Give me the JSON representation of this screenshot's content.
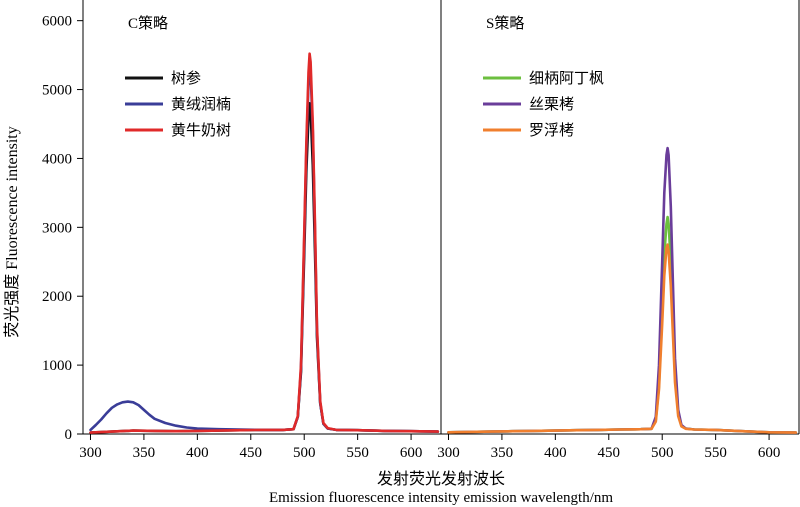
{
  "chart_data": {
    "type": "line",
    "xlabel_cn": "发射荧光发射波长",
    "xlabel_en": "Emission fluorescence intensity emission wavelength/nm",
    "ylabel": "荧光强度 Fluorescence intensity",
    "ylim": [
      0,
      6300
    ],
    "yticks": [
      0,
      1000,
      2000,
      3000,
      4000,
      5000,
      6000
    ],
    "grid": false,
    "panels": [
      {
        "title": "C策略",
        "xlim": [
          293,
          628
        ],
        "xticks": [
          300,
          350,
          400,
          450,
          500,
          550,
          600
        ],
        "legend_position": "top-left",
        "series": [
          {
            "name": "树参",
            "color": "#111111",
            "points": [
              [
                300,
                20
              ],
              [
                320,
                35
              ],
              [
                340,
                50
              ],
              [
                360,
                45
              ],
              [
                380,
                40
              ],
              [
                400,
                45
              ],
              [
                420,
                50
              ],
              [
                440,
                55
              ],
              [
                460,
                60
              ],
              [
                480,
                60
              ],
              [
                490,
                70
              ],
              [
                494,
                250
              ],
              [
                497,
                900
              ],
              [
                500,
                2600
              ],
              [
                502,
                3800
              ],
              [
                504,
                4600
              ],
              [
                505,
                4800
              ],
              [
                506,
                4700
              ],
              [
                508,
                3900
              ],
              [
                510,
                2700
              ],
              [
                512,
                1400
              ],
              [
                515,
                450
              ],
              [
                518,
                150
              ],
              [
                522,
                80
              ],
              [
                530,
                60
              ],
              [
                550,
                55
              ],
              [
                575,
                45
              ],
              [
                600,
                40
              ],
              [
                625,
                35
              ]
            ]
          },
          {
            "name": "黄绒润楠",
            "color": "#3a3d98",
            "points": [
              [
                300,
                60
              ],
              [
                305,
                130
              ],
              [
                310,
                210
              ],
              [
                315,
                300
              ],
              [
                320,
                380
              ],
              [
                325,
                430
              ],
              [
                330,
                460
              ],
              [
                335,
                470
              ],
              [
                340,
                460
              ],
              [
                345,
                420
              ],
              [
                350,
                350
              ],
              [
                355,
                280
              ],
              [
                360,
                220
              ],
              [
                370,
                160
              ],
              [
                380,
                120
              ],
              [
                390,
                95
              ],
              [
                400,
                80
              ],
              [
                420,
                70
              ],
              [
                440,
                65
              ],
              [
                460,
                60
              ],
              [
                480,
                60
              ],
              [
                490,
                70
              ],
              [
                494,
                250
              ],
              [
                497,
                950
              ],
              [
                500,
                2800
              ],
              [
                502,
                4100
              ],
              [
                504,
                5100
              ],
              [
                505,
                5400
              ],
              [
                506,
                5250
              ],
              [
                508,
                4400
              ],
              [
                510,
                3000
              ],
              [
                512,
                1500
              ],
              [
                515,
                450
              ],
              [
                518,
                150
              ],
              [
                522,
                80
              ],
              [
                530,
                60
              ],
              [
                550,
                55
              ],
              [
                575,
                45
              ],
              [
                600,
                40
              ],
              [
                625,
                35
              ]
            ]
          },
          {
            "name": "黄牛奶树",
            "color": "#e02a2a",
            "points": [
              [
                300,
                20
              ],
              [
                320,
                35
              ],
              [
                340,
                50
              ],
              [
                360,
                45
              ],
              [
                380,
                40
              ],
              [
                400,
                45
              ],
              [
                420,
                50
              ],
              [
                440,
                55
              ],
              [
                460,
                60
              ],
              [
                480,
                60
              ],
              [
                490,
                70
              ],
              [
                494,
                260
              ],
              [
                497,
                1000
              ],
              [
                500,
                2900
              ],
              [
                502,
                4200
              ],
              [
                504,
                5250
              ],
              [
                505,
                5520
              ],
              [
                506,
                5400
              ],
              [
                508,
                4500
              ],
              [
                510,
                3100
              ],
              [
                512,
                1550
              ],
              [
                515,
                480
              ],
              [
                518,
                160
              ],
              [
                522,
                85
              ],
              [
                530,
                60
              ],
              [
                550,
                55
              ],
              [
                575,
                45
              ],
              [
                600,
                40
              ],
              [
                625,
                35
              ]
            ]
          }
        ]
      },
      {
        "title": "S策略",
        "xlim": [
          293,
          628
        ],
        "xticks": [
          300,
          350,
          400,
          450,
          500,
          550,
          600
        ],
        "legend_position": "top-left",
        "series": [
          {
            "name": "细柄阿丁枫",
            "color": "#6cbf3f",
            "points": [
              [
                300,
                25
              ],
              [
                320,
                30
              ],
              [
                340,
                35
              ],
              [
                360,
                40
              ],
              [
                380,
                45
              ],
              [
                400,
                50
              ],
              [
                420,
                55
              ],
              [
                440,
                60
              ],
              [
                460,
                65
              ],
              [
                480,
                70
              ],
              [
                490,
                75
              ],
              [
                494,
                200
              ],
              [
                497,
                700
              ],
              [
                500,
                1800
              ],
              [
                502,
                2600
              ],
              [
                504,
                3050
              ],
              [
                505,
                3150
              ],
              [
                506,
                3050
              ],
              [
                508,
                2500
              ],
              [
                510,
                1700
              ],
              [
                512,
                900
              ],
              [
                515,
                300
              ],
              [
                518,
                120
              ],
              [
                522,
                80
              ],
              [
                530,
                65
              ],
              [
                550,
                60
              ],
              [
                575,
                40
              ],
              [
                600,
                25
              ],
              [
                625,
                20
              ]
            ]
          },
          {
            "name": "丝栗栲",
            "color": "#6a3d9a",
            "points": [
              [
                300,
                25
              ],
              [
                320,
                30
              ],
              [
                340,
                35
              ],
              [
                360,
                40
              ],
              [
                380,
                45
              ],
              [
                400,
                50
              ],
              [
                420,
                55
              ],
              [
                440,
                60
              ],
              [
                460,
                65
              ],
              [
                480,
                70
              ],
              [
                490,
                75
              ],
              [
                494,
                250
              ],
              [
                497,
                1000
              ],
              [
                500,
                2500
              ],
              [
                502,
                3500
              ],
              [
                504,
                4050
              ],
              [
                505,
                4150
              ],
              [
                506,
                4050
              ],
              [
                508,
                3300
              ],
              [
                510,
                2200
              ],
              [
                512,
                1100
              ],
              [
                515,
                350
              ],
              [
                518,
                130
              ],
              [
                522,
                80
              ],
              [
                530,
                65
              ],
              [
                550,
                60
              ],
              [
                575,
                40
              ],
              [
                600,
                25
              ],
              [
                625,
                20
              ]
            ]
          },
          {
            "name": "罗浮栲",
            "color": "#f07f2e",
            "points": [
              [
                300,
                25
              ],
              [
                320,
                30
              ],
              [
                340,
                35
              ],
              [
                360,
                40
              ],
              [
                380,
                45
              ],
              [
                400,
                50
              ],
              [
                420,
                55
              ],
              [
                440,
                60
              ],
              [
                460,
                65
              ],
              [
                480,
                70
              ],
              [
                490,
                75
              ],
              [
                494,
                180
              ],
              [
                497,
                650
              ],
              [
                500,
                1600
              ],
              [
                502,
                2300
              ],
              [
                504,
                2700
              ],
              [
                505,
                2750
              ],
              [
                506,
                2650
              ],
              [
                508,
                2150
              ],
              [
                510,
                1450
              ],
              [
                512,
                750
              ],
              [
                515,
                260
              ],
              [
                518,
                110
              ],
              [
                522,
                75
              ],
              [
                530,
                65
              ],
              [
                550,
                60
              ],
              [
                575,
                40
              ],
              [
                600,
                25
              ],
              [
                625,
                20
              ]
            ]
          }
        ]
      }
    ]
  }
}
